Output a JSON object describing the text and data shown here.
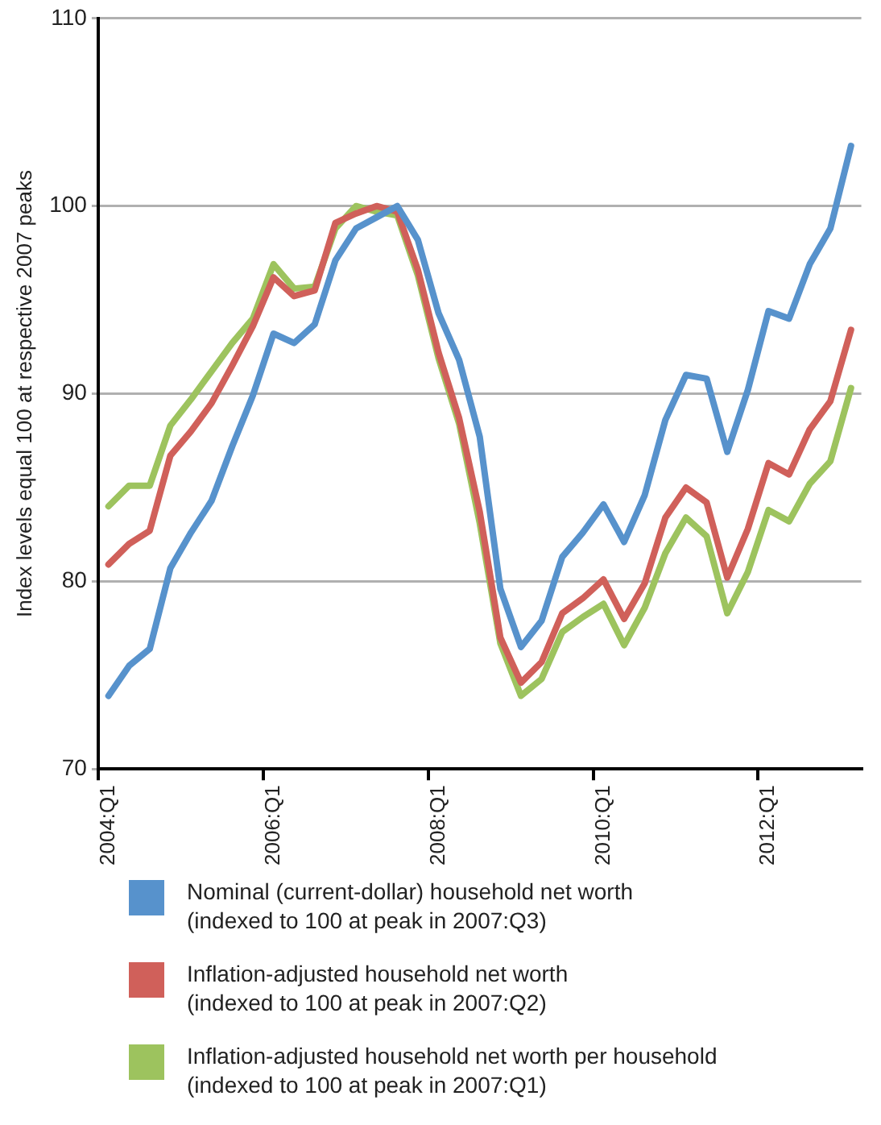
{
  "chart_data": {
    "type": "line",
    "ylabel": "Index levels equal 100 at respective 2007 peaks",
    "categories": [
      "2004:Q1",
      null,
      null,
      null,
      null,
      null,
      null,
      null,
      "2006:Q1",
      null,
      null,
      null,
      null,
      null,
      null,
      null,
      "2008:Q1",
      null,
      null,
      null,
      null,
      null,
      null,
      null,
      "2010:Q1",
      null,
      null,
      null,
      null,
      null,
      null,
      null,
      "2012:Q1",
      null,
      null,
      null,
      null
    ],
    "ylim": [
      70,
      110
    ],
    "yticks": [
      70,
      80,
      90,
      100,
      110
    ],
    "grid": "y",
    "legend": "bottom",
    "marker": "none",
    "line_style": "solid",
    "series": [
      {
        "name": "Nominal (current-dollar) household net worth\n(indexed to 100 at peak in 2007:Q3)",
        "color": "#5792cc",
        "values": [
          73.9,
          75.5,
          76.4,
          80.7,
          82.6,
          84.3,
          87.2,
          89.9,
          93.2,
          92.7,
          93.7,
          97.1,
          98.8,
          99.4,
          100,
          98.2,
          94.3,
          91.8,
          87.7,
          79.6,
          76.5,
          77.9,
          81.3,
          82.6,
          84.1,
          82.1,
          84.6,
          88.6,
          91.0,
          90.8,
          86.9,
          90.2,
          94.4,
          94.0,
          96.9,
          98.8,
          103.2
        ]
      },
      {
        "name": "Inflation-adjusted household net worth\n(indexed to 100 at peak in 2007:Q2)",
        "color": "#d0605a",
        "values": [
          80.9,
          82.0,
          82.7,
          86.7,
          88.0,
          89.5,
          91.5,
          93.6,
          96.2,
          95.2,
          95.5,
          99.1,
          99.6,
          100,
          99.7,
          96.6,
          92.2,
          88.7,
          83.7,
          77.0,
          74.6,
          75.7,
          78.3,
          79.1,
          80.1,
          78.0,
          79.9,
          83.4,
          85.0,
          84.2,
          80.2,
          82.8,
          86.3,
          85.7,
          88.1,
          89.6,
          93.4
        ]
      },
      {
        "name": "Inflation-adjusted household net worth per household\n(indexed to 100 at peak in 2007:Q1)",
        "color": "#9dc35e",
        "values": [
          84.0,
          85.1,
          85.1,
          88.3,
          89.7,
          91.2,
          92.7,
          94.0,
          96.9,
          95.6,
          95.7,
          98.8,
          100,
          99.7,
          99.5,
          96.3,
          91.9,
          88.4,
          83.1,
          76.7,
          73.9,
          74.8,
          77.3,
          78.1,
          78.8,
          76.6,
          78.6,
          81.5,
          83.4,
          82.4,
          78.3,
          80.5,
          83.8,
          83.2,
          85.2,
          86.4,
          90.3
        ]
      }
    ]
  }
}
